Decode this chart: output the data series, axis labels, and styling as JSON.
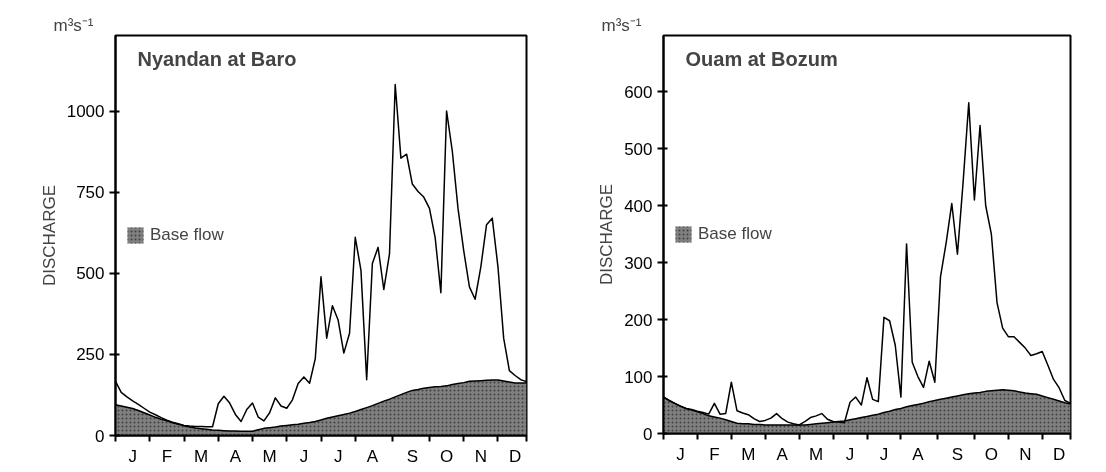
{
  "chart_data": [
    {
      "type": "line",
      "title": "Nyandan at Baro",
      "ylabel": "DISCHARGE",
      "annotations": [
        "m³s⁻¹"
      ],
      "legend": "left",
      "grid": false,
      "categories": [
        null,
        null,
        null,
        "J",
        null,
        null,
        null,
        null,
        null,
        "F",
        null,
        null,
        null,
        null,
        null,
        "M",
        null,
        null,
        null,
        null,
        null,
        "A",
        null,
        null,
        null,
        null,
        null,
        "M",
        null,
        null,
        null,
        null,
        null,
        "J",
        null,
        null,
        null,
        null,
        null,
        "J",
        null,
        null,
        null,
        null,
        null,
        "A",
        null,
        null,
        null,
        null,
        null,
        null,
        "S",
        null,
        null,
        null,
        null,
        null,
        "O",
        null,
        null,
        null,
        null,
        null,
        "N",
        null,
        null,
        null,
        null,
        null,
        "D",
        null,
        null
      ],
      "ylim": [
        0,
        1233
      ],
      "yticks": [
        0,
        250,
        500,
        750,
        1000
      ],
      "series": [
        {
          "type": "area",
          "name": "Base flow",
          "color": "#808080",
          "values": [
            95,
            91,
            87,
            83,
            77,
            70,
            63,
            56,
            50,
            45,
            39,
            35,
            30,
            26,
            23,
            21,
            19,
            17,
            16,
            15,
            14,
            14,
            13,
            13,
            13,
            18,
            22,
            24,
            26,
            29,
            31,
            33,
            35,
            38,
            40,
            43,
            48,
            53,
            57,
            61,
            65,
            69,
            74,
            80,
            86,
            92,
            99,
            106,
            112,
            119,
            126,
            133,
            139,
            142,
            146,
            148,
            150,
            151,
            153,
            157,
            160,
            163,
            167,
            168,
            169,
            170,
            171,
            171,
            168,
            165,
            162,
            162,
            162
          ]
        },
        {
          "color": "#000000",
          "values": [
            167,
            133,
            119,
            107,
            96,
            84,
            72,
            64,
            55,
            47,
            41,
            36,
            31,
            29,
            28,
            28,
            27,
            27,
            98,
            121,
            100,
            65,
            43,
            80,
            100,
            57,
            45,
            70,
            116,
            91,
            84,
            110,
            160,
            180,
            161,
            237,
            489,
            300,
            400,
            356,
            254,
            315,
            611,
            509,
            172,
            530,
            580,
            450,
            560,
            1082,
            855,
            867,
            775,
            752,
            735,
            700,
            610,
            440,
            1000,
            877,
            700,
            570,
            458,
            420,
            520,
            650,
            670,
            520,
            300,
            200,
            185,
            172,
            166
          ]
        }
      ]
    },
    {
      "type": "line",
      "title": "Ouam at Bozum",
      "ylabel": "DISCHARGE",
      "annotations": [
        "m³s⁻¹"
      ],
      "legend": "left",
      "grid": false,
      "categories": [
        null,
        null,
        null,
        "J",
        null,
        null,
        null,
        null,
        null,
        "F",
        null,
        null,
        null,
        null,
        null,
        "M",
        null,
        null,
        null,
        null,
        null,
        "A",
        null,
        null,
        null,
        null,
        null,
        "M",
        null,
        null,
        null,
        null,
        null,
        "J",
        null,
        null,
        null,
        null,
        null,
        "J",
        null,
        null,
        null,
        null,
        null,
        "A",
        null,
        null,
        null,
        null,
        null,
        null,
        "S",
        null,
        null,
        null,
        null,
        null,
        "O",
        null,
        null,
        null,
        null,
        null,
        "N",
        null,
        null,
        null,
        null,
        null,
        "D",
        null,
        null
      ],
      "ylim": [
        0,
        699
      ],
      "yticks": [
        0,
        100,
        200,
        300,
        400,
        500,
        600
      ],
      "series": [
        {
          "type": "area",
          "name": "Base flow",
          "color": "#808080",
          "values": [
            64,
            58,
            53,
            48,
            44,
            41,
            38,
            35,
            31,
            29,
            27,
            24,
            21,
            18,
            17,
            17,
            16,
            16,
            15,
            15,
            15,
            15,
            15,
            15,
            15,
            15,
            16,
            17,
            18,
            19,
            20,
            21,
            22,
            24,
            26,
            28,
            30,
            32,
            34,
            37,
            39,
            42,
            44,
            47,
            49,
            51,
            53,
            56,
            58,
            60,
            62,
            64,
            66,
            68,
            70,
            71,
            72,
            74,
            75,
            76,
            77,
            76,
            75,
            73,
            71,
            70,
            69,
            66,
            63,
            60,
            57,
            54,
            52
          ]
        },
        {
          "color": "#000000",
          "values": [
            64,
            58,
            53,
            48,
            44,
            42,
            39,
            37,
            34,
            53,
            34,
            35,
            90,
            40,
            36,
            33,
            26,
            21,
            23,
            27,
            35,
            26,
            20,
            17,
            15,
            21,
            28,
            31,
            35,
            25,
            21,
            20,
            19,
            55,
            64,
            50,
            98,
            60,
            56,
            204,
            198,
            155,
            64,
            333,
            125,
            100,
            81,
            127,
            90,
            275,
            335,
            404,
            315,
            441,
            581,
            410,
            541,
            400,
            350,
            230,
            185,
            170,
            170,
            160,
            150,
            137,
            140,
            144,
            120,
            95,
            80,
            58,
            53
          ]
        }
      ]
    }
  ]
}
